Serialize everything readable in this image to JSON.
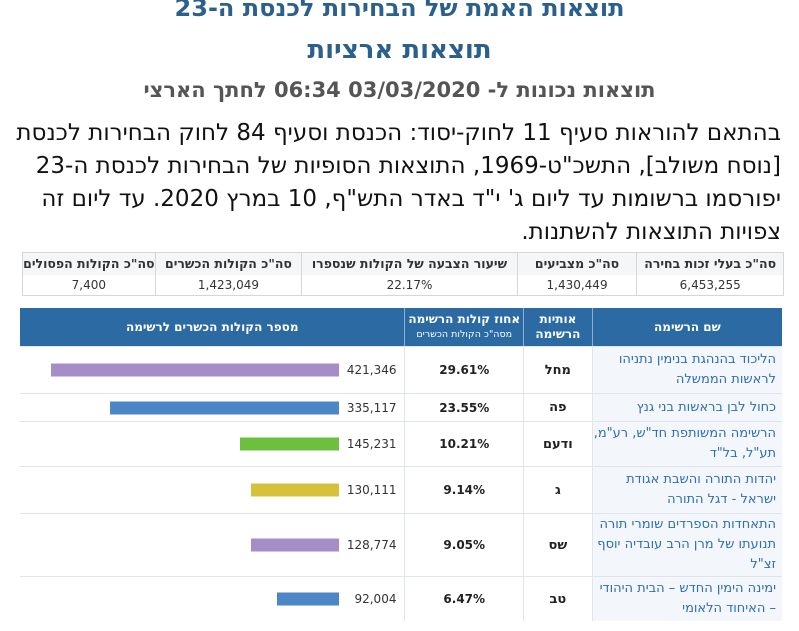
{
  "header": {
    "title": "תוצאות האמת של הבחירות לכנסת ה-23",
    "subtitle": "תוצאות ארציות",
    "updated": "תוצאות נכונות ל- 03/03/2020 06:34 לחתך הארצי",
    "notice": "בהתאם להוראות סעיף 11 לחוק-יסוד: הכנסת וסעיף 84 לחוק הבחירות לכנסת [נוסח משולב], התשכ\"ט-1969, התוצאות הסופיות של הבחירות לכנסת ה-23 יפורסמו ברשומות עד ליום ג' י\"ד באדר התש\"ף, 10 במרץ 2020. עד ליום זה צפויות התוצאות להשתנות."
  },
  "summary": [
    {
      "label": "סה\"כ בעלי זכות בחירה",
      "value": "6,453,255"
    },
    {
      "label": "סה\"כ מצביעים",
      "value": "1,430,449"
    },
    {
      "label": "שיעור הצבעה של הקולות שנספרו",
      "value": "22.17%"
    },
    {
      "label": "סה\"כ הקולות הכשרים",
      "value": "1,423,049"
    },
    {
      "label": "סה\"כ הקולות הפסולים",
      "value": "7,400"
    }
  ],
  "table": {
    "headers": {
      "name": "שם הרשימה",
      "letters_line1": "אותיות",
      "letters_line2": "הרשימה",
      "pct_line1": "אחוז קולות הרשימה",
      "pct_line2": "מסה\"כ הקולות הכשרים",
      "votes": "מספר הקולות הכשרים לרשימה"
    },
    "rows": [
      {
        "name": "הליכוד בהנהגת בנימין נתניהו לראשות הממשלה",
        "letters": "מחל",
        "pct": "29.61%",
        "votes": "421,346",
        "color": "#a58ec8"
      },
      {
        "name": "כחול לבן בראשות בני גנץ",
        "letters": "פה",
        "pct": "23.55%",
        "votes": "335,117",
        "color": "#4d86c6"
      },
      {
        "name": "הרשימה המשותפת חד\"ש, רע\"מ, תע\"ל, בל\"ד",
        "letters": "ודעם",
        "pct": "10.21%",
        "votes": "145,231",
        "color": "#6dbf3f"
      },
      {
        "name": "יהדות התורה והשבת אגודת ישראל - דגל התורה",
        "letters": "ג",
        "pct": "9.14%",
        "votes": "130,111",
        "color": "#d8c13a"
      },
      {
        "name": "התאחדות הספרדים שומרי תורה תנועתו של מרן הרב עובדיה יוסף זצ\"ל",
        "letters": "שס",
        "pct": "9.05%",
        "votes": "128,774",
        "color": "#a58ec8"
      },
      {
        "name": "ימינה הימין החדש – הבית היהודי – האיחוד הלאומי",
        "letters": "טב",
        "pct": "6.47%",
        "votes": "92,004",
        "color": "#4d86c6"
      }
    ]
  }
}
